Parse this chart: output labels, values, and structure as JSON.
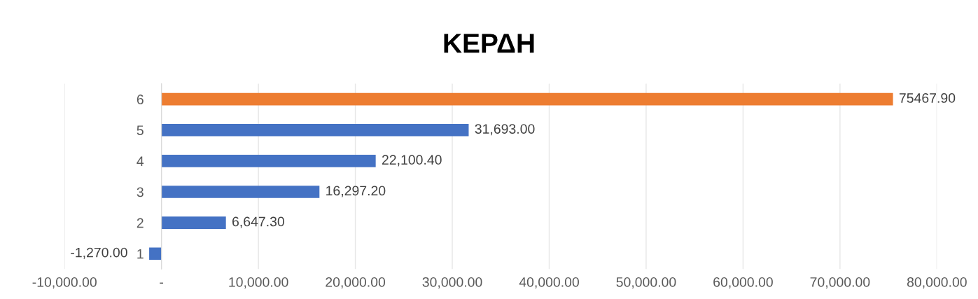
{
  "chart_data": {
    "type": "bar",
    "orientation": "horizontal",
    "title": "ΚΕΡΔΗ",
    "categories": [
      "6",
      "5",
      "4",
      "3",
      "2",
      "1"
    ],
    "values": [
      75467.9,
      31693.0,
      22100.4,
      16297.2,
      6647.3,
      -1270.0
    ],
    "colors": [
      "#ed7d31",
      "#4472c4",
      "#4472c4",
      "#4472c4",
      "#4472c4",
      "#4472c4"
    ],
    "value_labels": [
      "75467.90",
      "31,693.00",
      "22,100.40",
      "16,297.20",
      "6,647.30",
      "-1,270.00"
    ],
    "xlim": [
      -10000,
      80000
    ],
    "xticks": [
      {
        "value": -10000,
        "label": "-10,000.00"
      },
      {
        "value": 0,
        "label": "-"
      },
      {
        "value": 10000,
        "label": "10,000.00"
      },
      {
        "value": 20000,
        "label": "20,000.00"
      },
      {
        "value": 30000,
        "label": "30,000.00"
      },
      {
        "value": 40000,
        "label": "40,000.00"
      },
      {
        "value": 50000,
        "label": "50,000.00"
      },
      {
        "value": 60000,
        "label": "60,000.00"
      },
      {
        "value": 70000,
        "label": "70,000.00"
      },
      {
        "value": 80000,
        "label": "80,000.00"
      }
    ],
    "grid": "x",
    "legend": false
  }
}
